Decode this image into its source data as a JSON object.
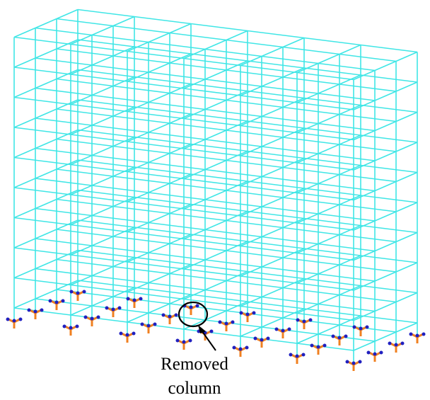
{
  "annotation": {
    "lines": [
      "Removed",
      "column"
    ]
  }
}
